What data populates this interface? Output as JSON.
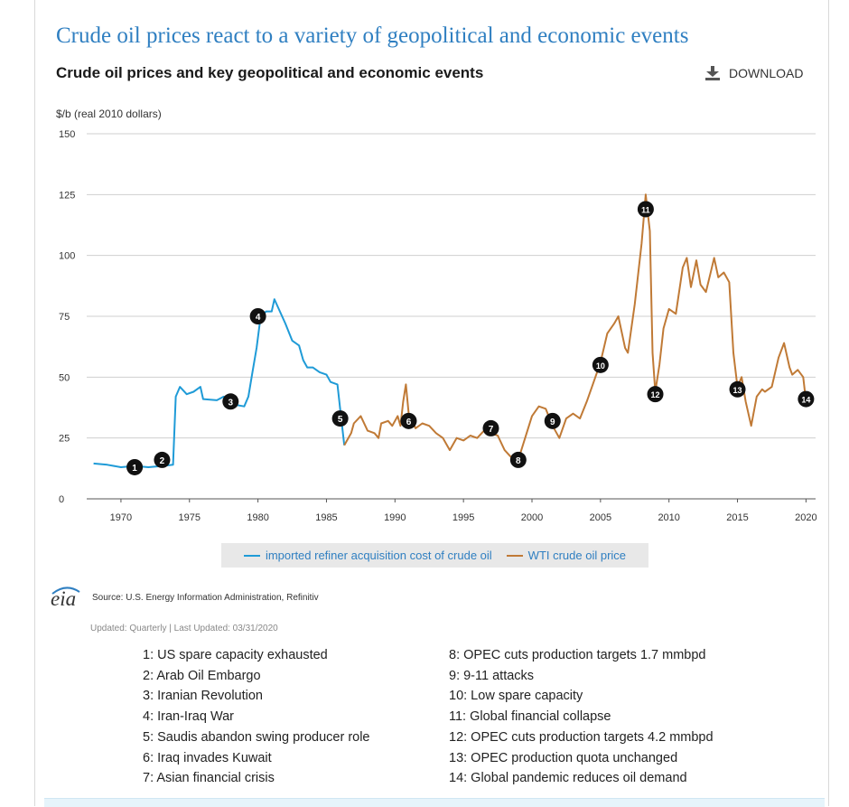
{
  "header": {
    "headline": "Crude oil prices react to a variety of geopolitical and economic events",
    "download_label": "DOWNLOAD",
    "download_icon": "download-icon"
  },
  "chart_data": {
    "type": "line",
    "title": "Crude oil prices and key geopolitical and economic events",
    "ylabel": "$/b (real 2010 dollars)",
    "xlabel": "",
    "xlim": [
      1967.5,
      2020.7
    ],
    "ylim": [
      0,
      150
    ],
    "xticks": [
      1970,
      1975,
      1980,
      1985,
      1990,
      1995,
      2000,
      2005,
      2010,
      2015,
      2020
    ],
    "yticks": [
      0,
      25,
      50,
      75,
      100,
      125,
      150
    ],
    "grid": true,
    "legend_position": "bottom",
    "series": [
      {
        "name": "imported refiner acquisition cost of crude oil",
        "color": "#1f9bd7",
        "points": [
          [
            1968,
            14.5
          ],
          [
            1969,
            14
          ],
          [
            1970,
            13
          ],
          [
            1971,
            13.5
          ],
          [
            1972,
            13
          ],
          [
            1973,
            13.5
          ],
          [
            1973.8,
            14
          ],
          [
            1974,
            42
          ],
          [
            1974.3,
            46
          ],
          [
            1974.8,
            43
          ],
          [
            1975.3,
            44
          ],
          [
            1975.8,
            46
          ],
          [
            1976,
            41
          ],
          [
            1977,
            40.5
          ],
          [
            1977.5,
            42
          ],
          [
            1978,
            39
          ],
          [
            1979,
            38
          ],
          [
            1979.3,
            42
          ],
          [
            1979.6,
            52
          ],
          [
            1979.9,
            62
          ],
          [
            1980.2,
            75
          ],
          [
            1980.6,
            77
          ],
          [
            1981,
            77
          ],
          [
            1981.2,
            82
          ],
          [
            1981.6,
            77
          ],
          [
            1982,
            72
          ],
          [
            1982.5,
            65
          ],
          [
            1983,
            63
          ],
          [
            1983.3,
            57
          ],
          [
            1983.6,
            54
          ],
          [
            1984,
            54
          ],
          [
            1984.5,
            52
          ],
          [
            1985,
            51
          ],
          [
            1985.3,
            48
          ],
          [
            1985.8,
            47
          ],
          [
            1986,
            37
          ],
          [
            1986.3,
            22
          ]
        ]
      },
      {
        "name": "WTI crude oil price",
        "color": "#c07a36",
        "points": [
          [
            1986.3,
            22
          ],
          [
            1986.8,
            27
          ],
          [
            1987,
            31
          ],
          [
            1987.5,
            34
          ],
          [
            1988,
            28
          ],
          [
            1988.5,
            27
          ],
          [
            1988.8,
            25
          ],
          [
            1989,
            31
          ],
          [
            1989.5,
            32
          ],
          [
            1989.8,
            30
          ],
          [
            1990.2,
            34
          ],
          [
            1990.4,
            30
          ],
          [
            1990.6,
            40
          ],
          [
            1990.8,
            47
          ],
          [
            1991,
            35
          ],
          [
            1991.5,
            29
          ],
          [
            1992,
            31
          ],
          [
            1992.5,
            30
          ],
          [
            1993,
            27
          ],
          [
            1993.5,
            25
          ],
          [
            1994,
            20
          ],
          [
            1994.5,
            25
          ],
          [
            1995,
            24
          ],
          [
            1995.5,
            26
          ],
          [
            1996,
            25
          ],
          [
            1996.5,
            28
          ],
          [
            1997,
            27
          ],
          [
            1997.5,
            26
          ],
          [
            1998,
            20
          ],
          [
            1998.5,
            17
          ],
          [
            1999,
            16
          ],
          [
            1999.5,
            25
          ],
          [
            2000,
            34
          ],
          [
            2000.5,
            38
          ],
          [
            2001,
            37
          ],
          [
            2001.5,
            30
          ],
          [
            2002,
            25
          ],
          [
            2002.5,
            33
          ],
          [
            2003,
            35
          ],
          [
            2003.5,
            33
          ],
          [
            2004,
            40
          ],
          [
            2004.5,
            48
          ],
          [
            2005,
            56
          ],
          [
            2005.5,
            68
          ],
          [
            2006,
            72
          ],
          [
            2006.3,
            75
          ],
          [
            2006.8,
            62
          ],
          [
            2007,
            60
          ],
          [
            2007.5,
            80
          ],
          [
            2008,
            105
          ],
          [
            2008.3,
            125
          ],
          [
            2008.6,
            110
          ],
          [
            2008.8,
            60
          ],
          [
            2009,
            44
          ],
          [
            2009.3,
            55
          ],
          [
            2009.6,
            70
          ],
          [
            2010,
            78
          ],
          [
            2010.5,
            76
          ],
          [
            2011,
            95
          ],
          [
            2011.3,
            99
          ],
          [
            2011.6,
            87
          ],
          [
            2012,
            98
          ],
          [
            2012.3,
            88
          ],
          [
            2012.7,
            85
          ],
          [
            2013,
            92
          ],
          [
            2013.3,
            99
          ],
          [
            2013.6,
            91
          ],
          [
            2014,
            93
          ],
          [
            2014.4,
            89
          ],
          [
            2014.7,
            60
          ],
          [
            2015,
            46
          ],
          [
            2015.3,
            50
          ],
          [
            2015.6,
            40
          ],
          [
            2016,
            30
          ],
          [
            2016.4,
            42
          ],
          [
            2016.8,
            45
          ],
          [
            2017,
            44
          ],
          [
            2017.5,
            46
          ],
          [
            2018,
            58
          ],
          [
            2018.4,
            64
          ],
          [
            2018.8,
            54
          ],
          [
            2019,
            51
          ],
          [
            2019.4,
            53
          ],
          [
            2019.8,
            50
          ],
          [
            2020,
            40
          ]
        ]
      }
    ],
    "events": [
      {
        "n": "1",
        "x": 1971,
        "y": 13
      },
      {
        "n": "2",
        "x": 1973,
        "y": 16
      },
      {
        "n": "3",
        "x": 1978,
        "y": 40
      },
      {
        "n": "4",
        "x": 1980,
        "y": 75
      },
      {
        "n": "5",
        "x": 1986,
        "y": 33
      },
      {
        "n": "6",
        "x": 1991,
        "y": 32
      },
      {
        "n": "7",
        "x": 1997,
        "y": 29
      },
      {
        "n": "8",
        "x": 1999,
        "y": 16
      },
      {
        "n": "9",
        "x": 2001.5,
        "y": 32
      },
      {
        "n": "10",
        "x": 2005,
        "y": 55
      },
      {
        "n": "11",
        "x": 2008.3,
        "y": 119
      },
      {
        "n": "12",
        "x": 2009,
        "y": 43
      },
      {
        "n": "13",
        "x": 2015,
        "y": 45
      },
      {
        "n": "14",
        "x": 2020,
        "y": 41
      }
    ]
  },
  "source": {
    "logo_text": "eia",
    "text": "Source: U.S. Energy Information Administration, Refinitiv",
    "updated": "Updated: Quarterly | Last Updated: 03/31/2020"
  },
  "event_list_left": [
    "1: US spare capacity exhausted",
    "2: Arab Oil Embargo",
    "3: Iranian Revolution",
    "4: Iran-Iraq War",
    "5: Saudis abandon swing producer role",
    "6: Iraq invades Kuwait",
    "7: Asian financial crisis"
  ],
  "event_list_right": [
    "8: OPEC cuts production targets 1.7 mmbpd",
    "9: 9-11 attacks",
    "10: Low spare capacity",
    "11: Global financial collapse",
    "12: OPEC cuts production targets 4.2 mmbpd",
    "13: OPEC production quota unchanged",
    "14: Global pandemic reduces oil demand"
  ]
}
